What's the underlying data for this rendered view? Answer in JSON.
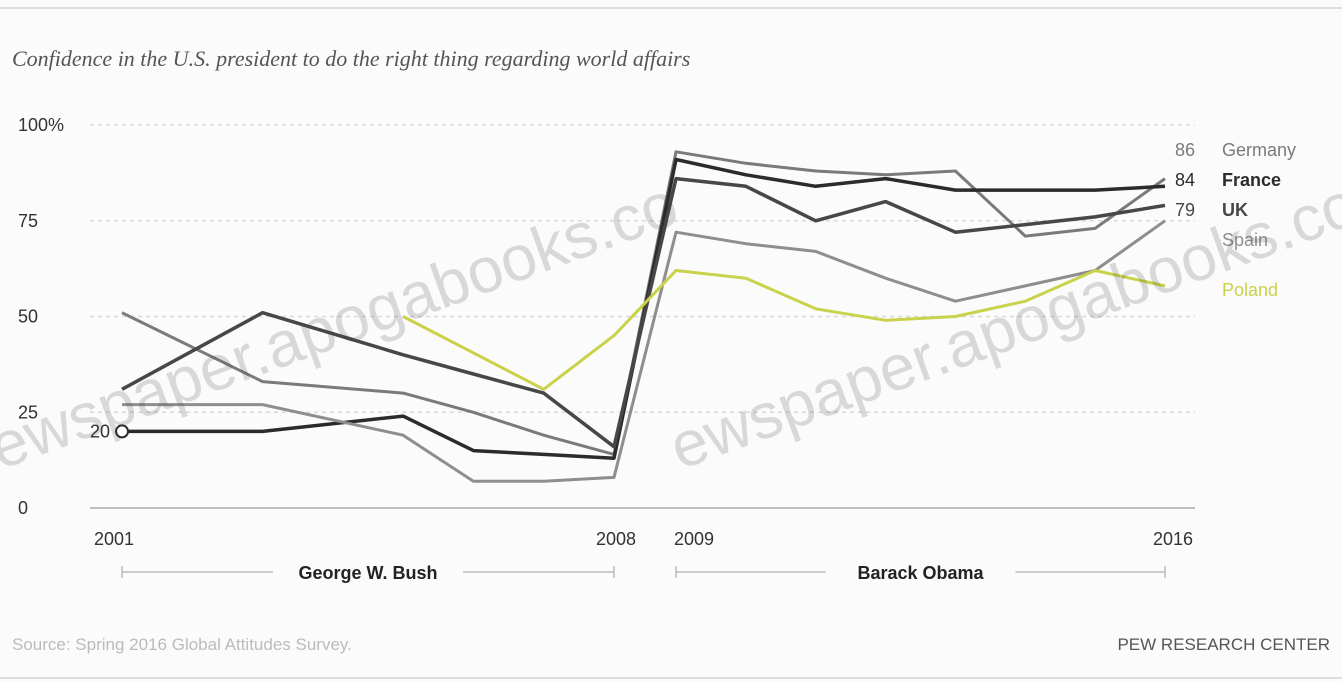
{
  "chart_data": {
    "type": "line",
    "title": "Confidence in the U.S. president to do the right thing regarding world affairs",
    "yticks": [
      "100%",
      "75",
      "50",
      "25",
      "0"
    ],
    "ytick_values": [
      100,
      75,
      50,
      25,
      0
    ],
    "ylim": [
      0,
      100
    ],
    "xlim": [
      2001,
      2016
    ],
    "xtick_labels": [
      "2001",
      "2008",
      "2009",
      "2016"
    ],
    "xtick_values": [
      2001,
      2008,
      2009,
      2016
    ],
    "eras": [
      {
        "name": "George W. Bush",
        "start": 2001,
        "end": 2008
      },
      {
        "name": "Barack Obama",
        "start": 2009,
        "end": 2016
      }
    ],
    "grid": true,
    "legend": "right",
    "series": [
      {
        "name": "Germany",
        "color": "#7a7a7a",
        "bold": false,
        "start_label": "",
        "end_label": "86",
        "x": [
          2001,
          2003,
          2005,
          2006,
          2007,
          2008,
          2009,
          2010,
          2011,
          2012,
          2013,
          2014,
          2015,
          2016
        ],
        "y": [
          51,
          33,
          30,
          25,
          19,
          14,
          93,
          90,
          88,
          87,
          88,
          71,
          73,
          86
        ]
      },
      {
        "name": "France",
        "color": "#2b2b2b",
        "bold": true,
        "start_label": "20",
        "end_label": "84",
        "x": [
          2001,
          2003,
          2005,
          2006,
          2007,
          2008,
          2009,
          2010,
          2011,
          2012,
          2013,
          2014,
          2015,
          2016
        ],
        "y": [
          20,
          20,
          24,
          15,
          14,
          13,
          91,
          87,
          84,
          86,
          83,
          83,
          83,
          84
        ]
      },
      {
        "name": "UK",
        "color": "#474747",
        "bold": true,
        "start_label": "",
        "end_label": "79",
        "x": [
          2001,
          2003,
          2005,
          2006,
          2007,
          2008,
          2009,
          2010,
          2011,
          2012,
          2013,
          2014,
          2015,
          2016
        ],
        "y": [
          31,
          51,
          40,
          35,
          30,
          16,
          86,
          84,
          75,
          80,
          72,
          74,
          76,
          79
        ]
      },
      {
        "name": "Spain",
        "color": "#8e8e8e",
        "bold": false,
        "start_label": "",
        "end_label": "",
        "x": [
          2001,
          2003,
          2005,
          2006,
          2007,
          2008,
          2009,
          2010,
          2011,
          2012,
          2013,
          2014,
          2015,
          2016
        ],
        "y": [
          27,
          27,
          19,
          7,
          7,
          8,
          72,
          69,
          67,
          60,
          54,
          58,
          62,
          75
        ]
      },
      {
        "name": "Poland",
        "color": "#c9d24a",
        "bold": false,
        "start_label": "",
        "end_label": "",
        "x": [
          2005,
          2007,
          2008,
          2009,
          2010,
          2011,
          2012,
          2013,
          2014,
          2015,
          2016
        ],
        "y": [
          50,
          31,
          45,
          62,
          60,
          52,
          49,
          50,
          54,
          62,
          58
        ]
      }
    ]
  },
  "footer": {
    "source": "Source: Spring 2016 Global Attitudes Survey.",
    "brand": "PEW RESEARCH CENTER"
  }
}
